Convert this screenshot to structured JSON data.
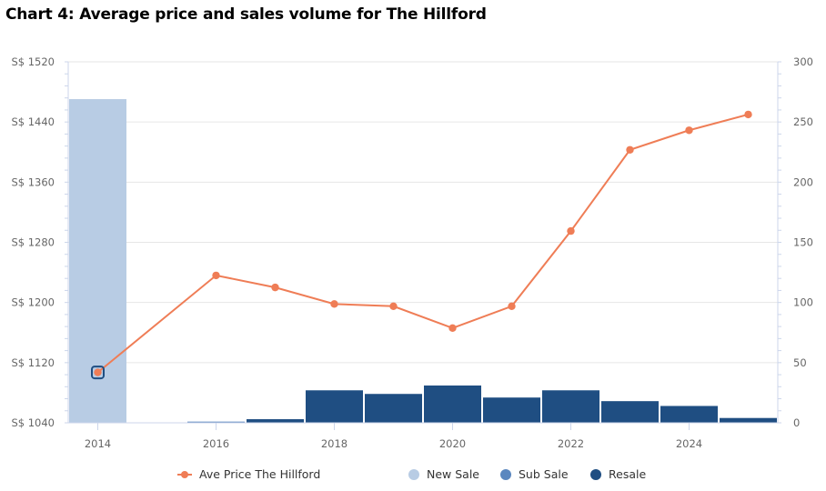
{
  "chart_data": {
    "type": "bar+line",
    "title": "Chart 4: Average price and sales volume for The Hillford",
    "x": [
      2014,
      2015,
      2016,
      2017,
      2018,
      2019,
      2020,
      2021,
      2022,
      2023,
      2024,
      2025
    ],
    "xticks": [
      "2014",
      "2016",
      "2018",
      "2020",
      "2022",
      "2024"
    ],
    "y_left": {
      "label": "",
      "ylim": [
        1040,
        1520
      ],
      "ticks": [
        "S$ 1040",
        "S$ 1120",
        "S$ 1200",
        "S$ 1280",
        "S$ 1360",
        "S$ 1440",
        "S$ 1520"
      ],
      "tick_values": [
        1040,
        1120,
        1200,
        1280,
        1360,
        1440,
        1520
      ]
    },
    "y_right": {
      "label": "",
      "ylim": [
        0,
        300
      ],
      "ticks": [
        "0",
        "50",
        "100",
        "150",
        "200",
        "250",
        "300"
      ],
      "tick_values": [
        0,
        50,
        100,
        150,
        200,
        250,
        300
      ]
    },
    "grid": true,
    "legend_position": "bottom",
    "series": [
      {
        "name": "Ave Price The Hillford",
        "type": "line",
        "axis": "left",
        "color": "#ef7d56",
        "values": [
          1107,
          null,
          1236,
          1220,
          1198,
          1195,
          1166,
          1195,
          1295,
          1403,
          1429,
          1450
        ]
      },
      {
        "name": "New Sale",
        "type": "bar",
        "axis": "right",
        "color": "#b8cce4",
        "values": [
          269,
          0,
          0,
          0,
          0,
          0,
          0,
          0,
          0,
          0,
          0,
          0
        ]
      },
      {
        "name": "Sub Sale",
        "type": "bar",
        "axis": "right",
        "color": "#5b87bf",
        "values": [
          0,
          0,
          1,
          0,
          0,
          0,
          0,
          0,
          0,
          0,
          0,
          0
        ]
      },
      {
        "name": "Resale",
        "type": "bar",
        "axis": "right",
        "color": "#1f4e82",
        "values": [
          0,
          0,
          0,
          3,
          27,
          24,
          31,
          21,
          27,
          18,
          14,
          4
        ]
      }
    ],
    "highlighted_point": {
      "series": "Ave Price The Hillford",
      "x": 2014
    }
  },
  "legend": [
    {
      "label": "Ave Price The Hillford",
      "kind": "line",
      "color": "#ef7d56"
    },
    {
      "label": "New Sale",
      "kind": "dot",
      "color": "#b8cce4"
    },
    {
      "label": "Sub Sale",
      "kind": "dot",
      "color": "#5b87bf"
    },
    {
      "label": "Resale",
      "kind": "dot",
      "color": "#1f4e82"
    }
  ]
}
